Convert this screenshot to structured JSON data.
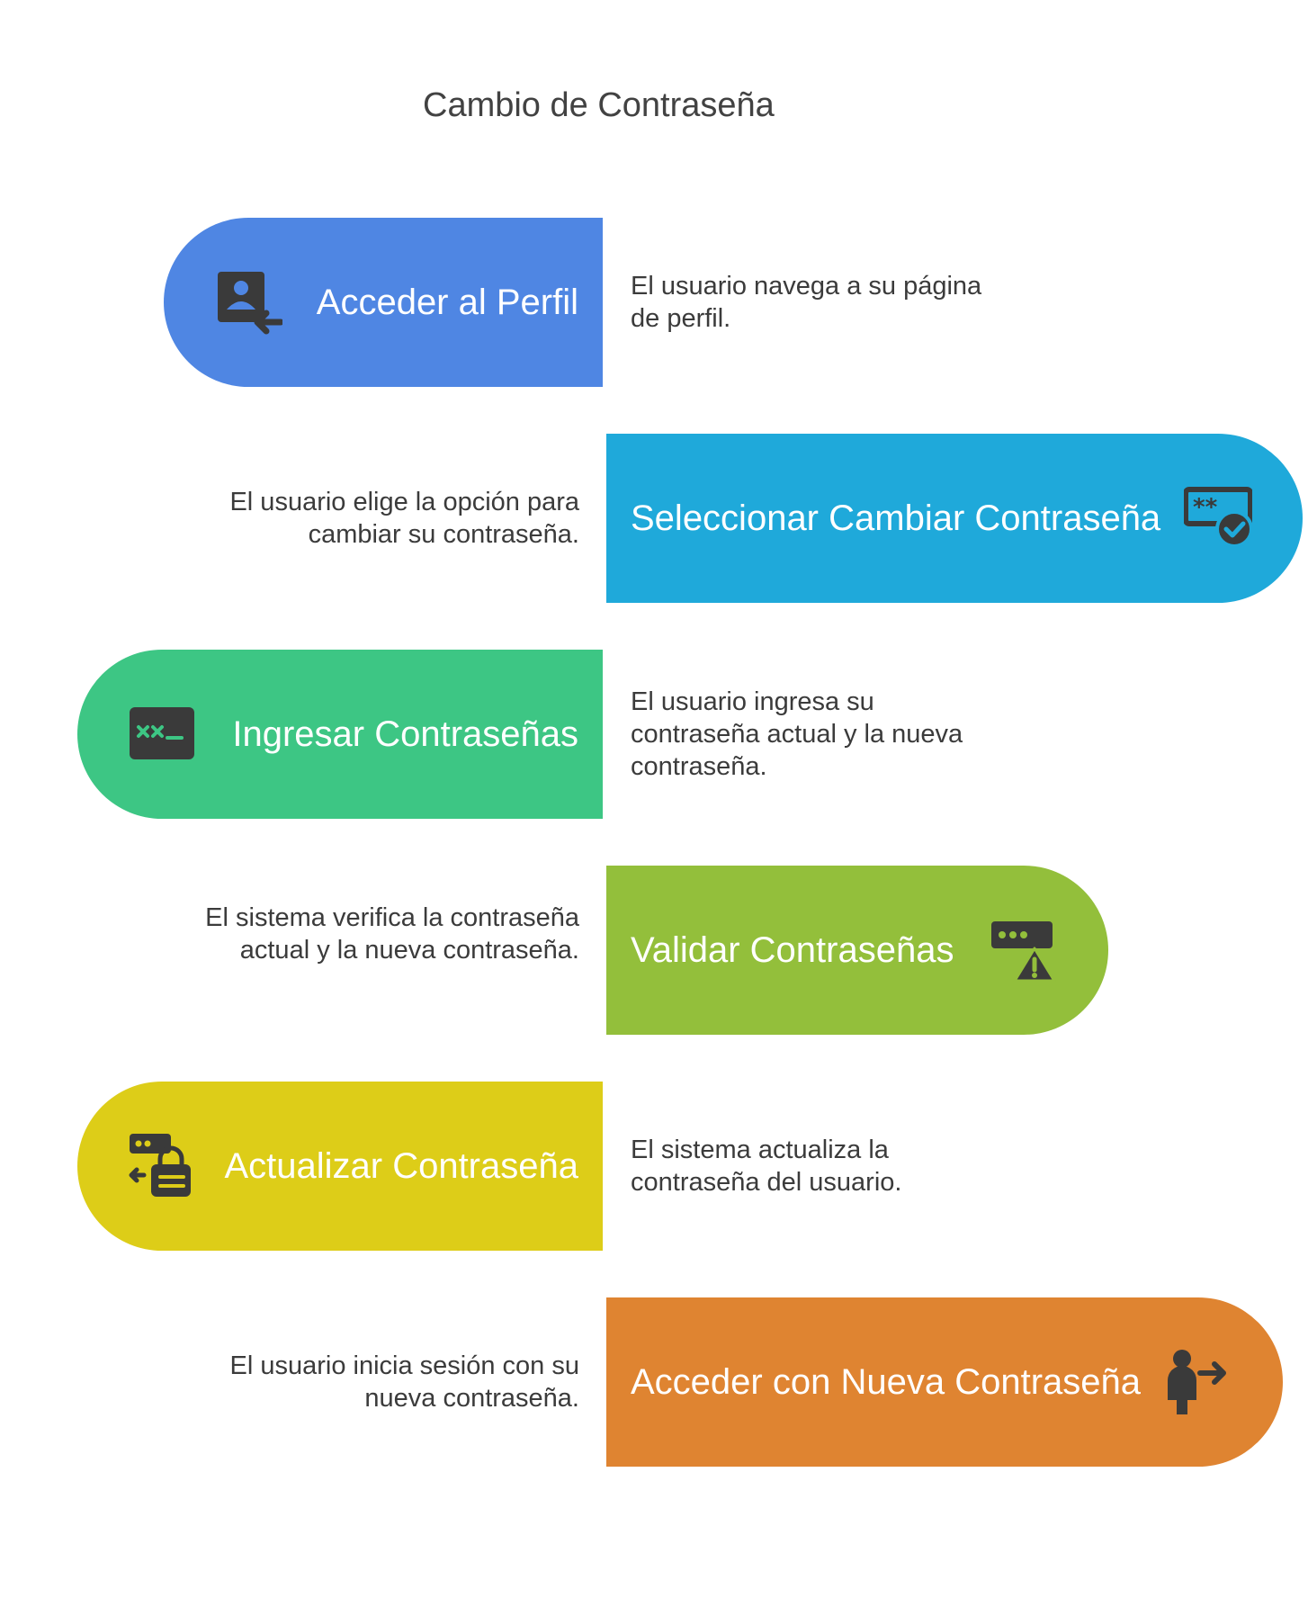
{
  "title": "Cambio de Contraseña",
  "steps": [
    {
      "label": "Acceder al Perfil",
      "description": "El usuario navega a su página de perfil.",
      "color": "#4F86E3",
      "icon": "user-profile-arrow-icon"
    },
    {
      "label": "Seleccionar Cambiar Contraseña",
      "description": "El usuario elige la opción para cambiar su contraseña.",
      "color": "#1FA9DA",
      "icon": "password-check-icon"
    },
    {
      "label": "Ingresar Contraseñas",
      "description": "El usuario ingresa su contraseña actual y la nueva contraseña.",
      "color": "#3DC684",
      "icon": "terminal-password-icon"
    },
    {
      "label": "Validar Contraseñas",
      "description": "El sistema verifica la contraseña actual y la nueva contraseña.",
      "color": "#93BF3B",
      "icon": "password-warning-icon"
    },
    {
      "label": "Actualizar Contraseña",
      "description": "El sistema actualiza la contraseña del usuario.",
      "color": "#DDCD18",
      "icon": "password-lock-icon"
    },
    {
      "label": "Acceder con Nueva Contraseña",
      "description": "El usuario inicia sesión con su nueva contraseña.",
      "color": "#DF8431",
      "icon": "person-exit-icon"
    }
  ]
}
